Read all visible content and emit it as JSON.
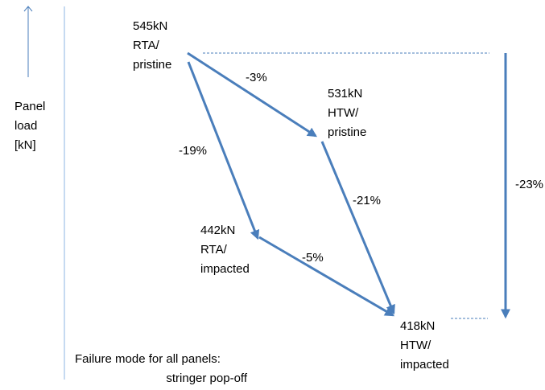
{
  "axis_label": [
    "Panel",
    "load",
    "[kN]"
  ],
  "nodes": [
    {
      "lines": [
        "545kN",
        "RTA/",
        "pristine"
      ]
    },
    {
      "lines": [
        "531kN",
        "HTW/",
        "pristine"
      ]
    },
    {
      "lines": [
        "442kN",
        "RTA/",
        "impacted"
      ]
    },
    {
      "lines": [
        "418kN",
        "HTW/",
        "impacted"
      ]
    }
  ],
  "edges": [
    {
      "label": "-3%"
    },
    {
      "label": "-19%"
    },
    {
      "label": "-21%"
    },
    {
      "label": "-5%"
    }
  ],
  "total_change": "-23%",
  "note": [
    "Failure mode for all panels:",
    "stringer pop-off"
  ]
}
